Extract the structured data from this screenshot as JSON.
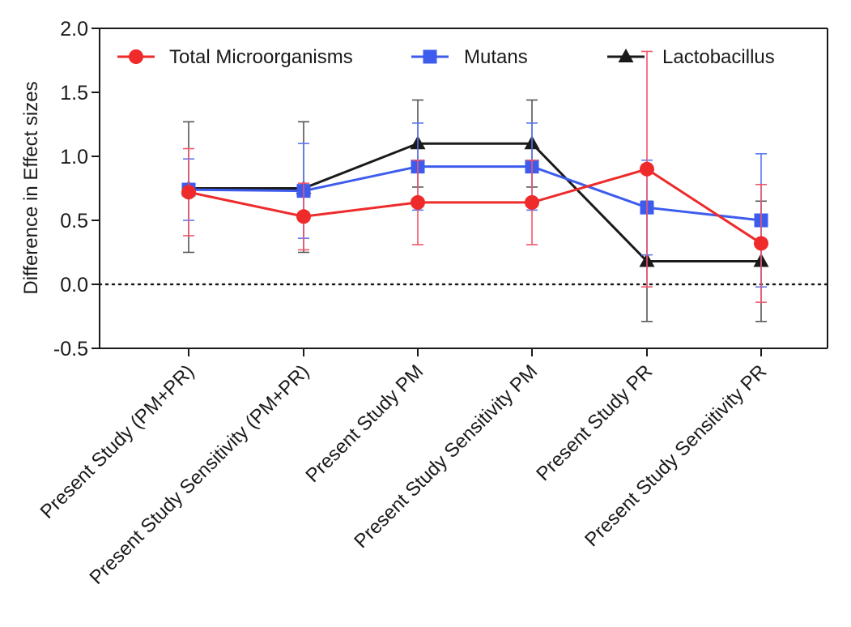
{
  "chart_data": {
    "type": "line",
    "title": "",
    "xlabel": "",
    "ylabel": "Difference in Effect sizes",
    "ylim": [
      -0.5,
      2.0
    ],
    "yticks": [
      "2.0",
      "1.5",
      "1.0",
      "0.5",
      "0.0",
      "-0.5"
    ],
    "ytick_values": [
      2.0,
      1.5,
      1.0,
      0.5,
      0.0,
      -0.5
    ],
    "reference_line": {
      "y": 0.0,
      "style": "dotted"
    },
    "grid": false,
    "legend_position": "top",
    "categories": [
      "Present Study (PM+PR)",
      "Present Study Sensitivity (PM+PR)",
      "Present Study PM",
      "Present Study Sensitivity PM",
      "Present Study PR",
      "Present Study Sensitivity PR"
    ],
    "series": [
      {
        "name": "Lactobacillus",
        "color": "#1a1a1a",
        "error_color": "#555555",
        "marker": "triangle",
        "values": [
          0.75,
          0.75,
          1.1,
          1.1,
          0.18,
          0.18
        ],
        "err_low": [
          0.25,
          0.25,
          0.76,
          0.76,
          -0.29,
          -0.29
        ],
        "err_high": [
          1.27,
          1.27,
          1.44,
          1.44,
          0.65,
          0.65
        ]
      },
      {
        "name": "Mutans",
        "color": "#3d5ced",
        "error_color": "#5a78f0",
        "marker": "square",
        "values": [
          0.74,
          0.73,
          0.92,
          0.92,
          0.6,
          0.5
        ],
        "err_low": [
          0.5,
          0.36,
          0.58,
          0.58,
          0.23,
          -0.02
        ],
        "err_high": [
          0.98,
          1.1,
          1.26,
          1.26,
          0.97,
          1.02
        ]
      },
      {
        "name": "Total Microorganisms",
        "color": "#ee2a2a",
        "error_color": "#f0566a",
        "marker": "circle",
        "values": [
          0.72,
          0.53,
          0.64,
          0.64,
          0.9,
          0.32
        ],
        "err_low": [
          0.38,
          0.27,
          0.31,
          0.31,
          -0.02,
          -0.14
        ],
        "err_high": [
          1.06,
          0.79,
          0.97,
          0.97,
          1.82,
          0.78
        ]
      }
    ],
    "legend_order": [
      "Total Microorganisms",
      "Mutans",
      "Lactobacillus"
    ]
  }
}
